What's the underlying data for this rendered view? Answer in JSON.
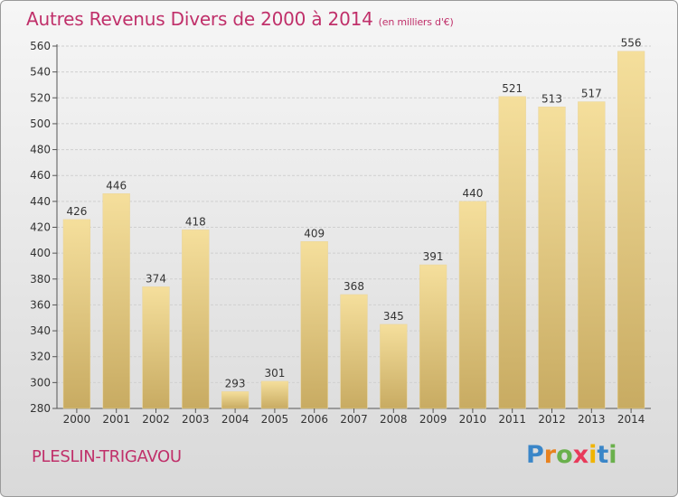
{
  "header": {
    "title": "Autres Revenus Divers de 2000 à 2014",
    "subtitle": "(en milliers d'€)"
  },
  "footer": {
    "commune": "PLESLIN-TRIGAVOU",
    "logo_letters": [
      "P",
      "r",
      "o",
      "x",
      "i",
      "t",
      "i"
    ],
    "logo_colors": [
      "#3a86c8",
      "#e8821e",
      "#6ab04c",
      "#e83a5a",
      "#f0b400",
      "#3a86c8",
      "#6ab04c"
    ]
  },
  "colors": {
    "bar_light": "#f3dc98",
    "bar_dark": "#c9ac62",
    "title": "#c0306a"
  },
  "chart_data": {
    "type": "bar",
    "title": "Autres Revenus Divers de 2000 à 2014",
    "subtitle": "(en milliers d'€)",
    "categories": [
      "2000",
      "2001",
      "2002",
      "2003",
      "2004",
      "2005",
      "2006",
      "2007",
      "2008",
      "2009",
      "2010",
      "2011",
      "2012",
      "2013",
      "2014"
    ],
    "values": [
      426,
      446,
      374,
      418,
      293,
      301,
      409,
      368,
      345,
      391,
      440,
      521,
      513,
      517,
      556
    ],
    "ylim": [
      280,
      560
    ],
    "yticks": [
      280,
      300,
      320,
      340,
      360,
      380,
      400,
      420,
      440,
      460,
      480,
      500,
      520,
      540,
      560
    ],
    "grid": true,
    "xlabel": "",
    "ylabel": ""
  }
}
